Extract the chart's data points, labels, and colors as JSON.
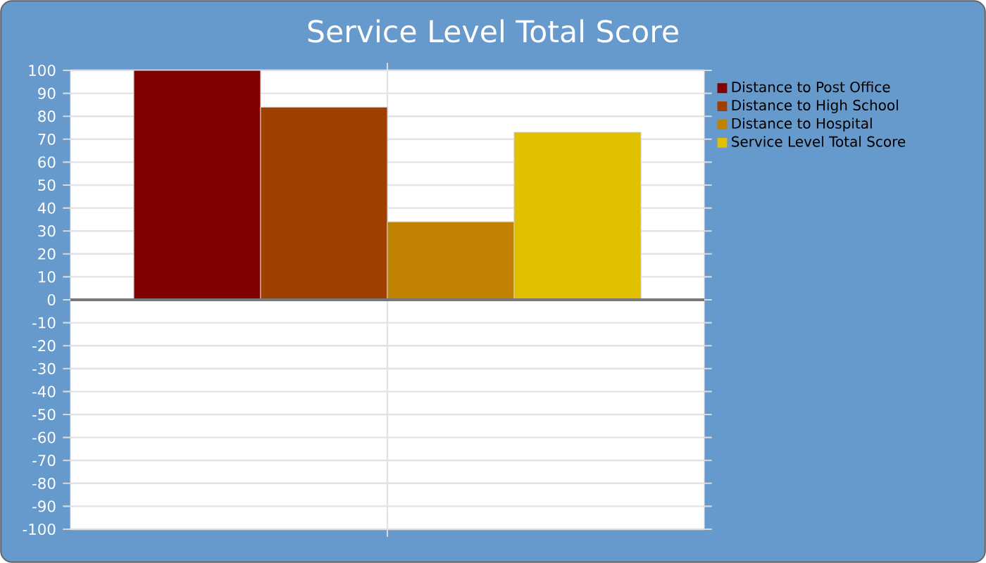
{
  "chart_data": {
    "type": "bar",
    "title": "Service Level Total Score",
    "categories": [
      null
    ],
    "series": [
      {
        "name": "Distance to Post Office",
        "color": "#800000",
        "values": [
          100
        ]
      },
      {
        "name": "Distance to High School",
        "color": "#a04000",
        "values": [
          84
        ]
      },
      {
        "name": "Distance to Hospital",
        "color": "#c08000",
        "values": [
          34
        ]
      },
      {
        "name": "Service Level Total Score",
        "color": "#e0c000",
        "values": [
          73
        ]
      }
    ],
    "ylim": [
      -100,
      100
    ],
    "yticks": [
      -100,
      -90,
      -80,
      -70,
      -60,
      -50,
      -40,
      -30,
      -20,
      -10,
      0,
      10,
      20,
      30,
      40,
      50,
      60,
      70,
      80,
      90,
      100
    ],
    "grid": true,
    "legend": "right"
  }
}
